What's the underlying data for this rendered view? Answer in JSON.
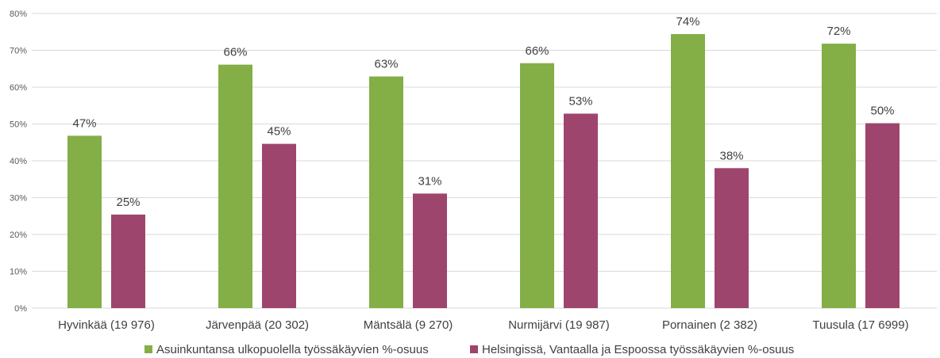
{
  "chart_data": {
    "type": "bar",
    "categories": [
      "Hyvinkää (19 976)",
      "Järvenpää (20 302)",
      "Mäntsälä (9 270)",
      "Nurmijärvi (19 987)",
      "Pornainen (2 382)",
      "Tuusula (17 6999)"
    ],
    "series": [
      {
        "name": "Asuinkuntansa ulkopuolella työssäkäyvien %-osuus",
        "color": "#84ae46",
        "values": [
          46.8,
          66.1,
          62.9,
          66.5,
          74.4,
          71.8
        ],
        "labels": [
          "47%",
          "66%",
          "63%",
          "66%",
          "74%",
          "72%"
        ]
      },
      {
        "name": "Helsingissä, Vantaalla ja Espoossa työssäkäyvien %-osuus",
        "color": "#9e456d",
        "values": [
          25.4,
          44.6,
          31.1,
          52.8,
          38.0,
          50.2
        ],
        "labels": [
          "25%",
          "45%",
          "31%",
          "53%",
          "38%",
          "50%"
        ]
      }
    ],
    "ylim": [
      0,
      80
    ],
    "yticks": [
      0,
      10,
      20,
      30,
      40,
      50,
      60,
      70,
      80
    ],
    "ytick_labels": [
      "0%",
      "10%",
      "20%",
      "30%",
      "40%",
      "50%",
      "60%",
      "70%",
      "80%"
    ],
    "grid": true,
    "legend_position": "bottom",
    "title": "",
    "xlabel": "",
    "ylabel": ""
  }
}
